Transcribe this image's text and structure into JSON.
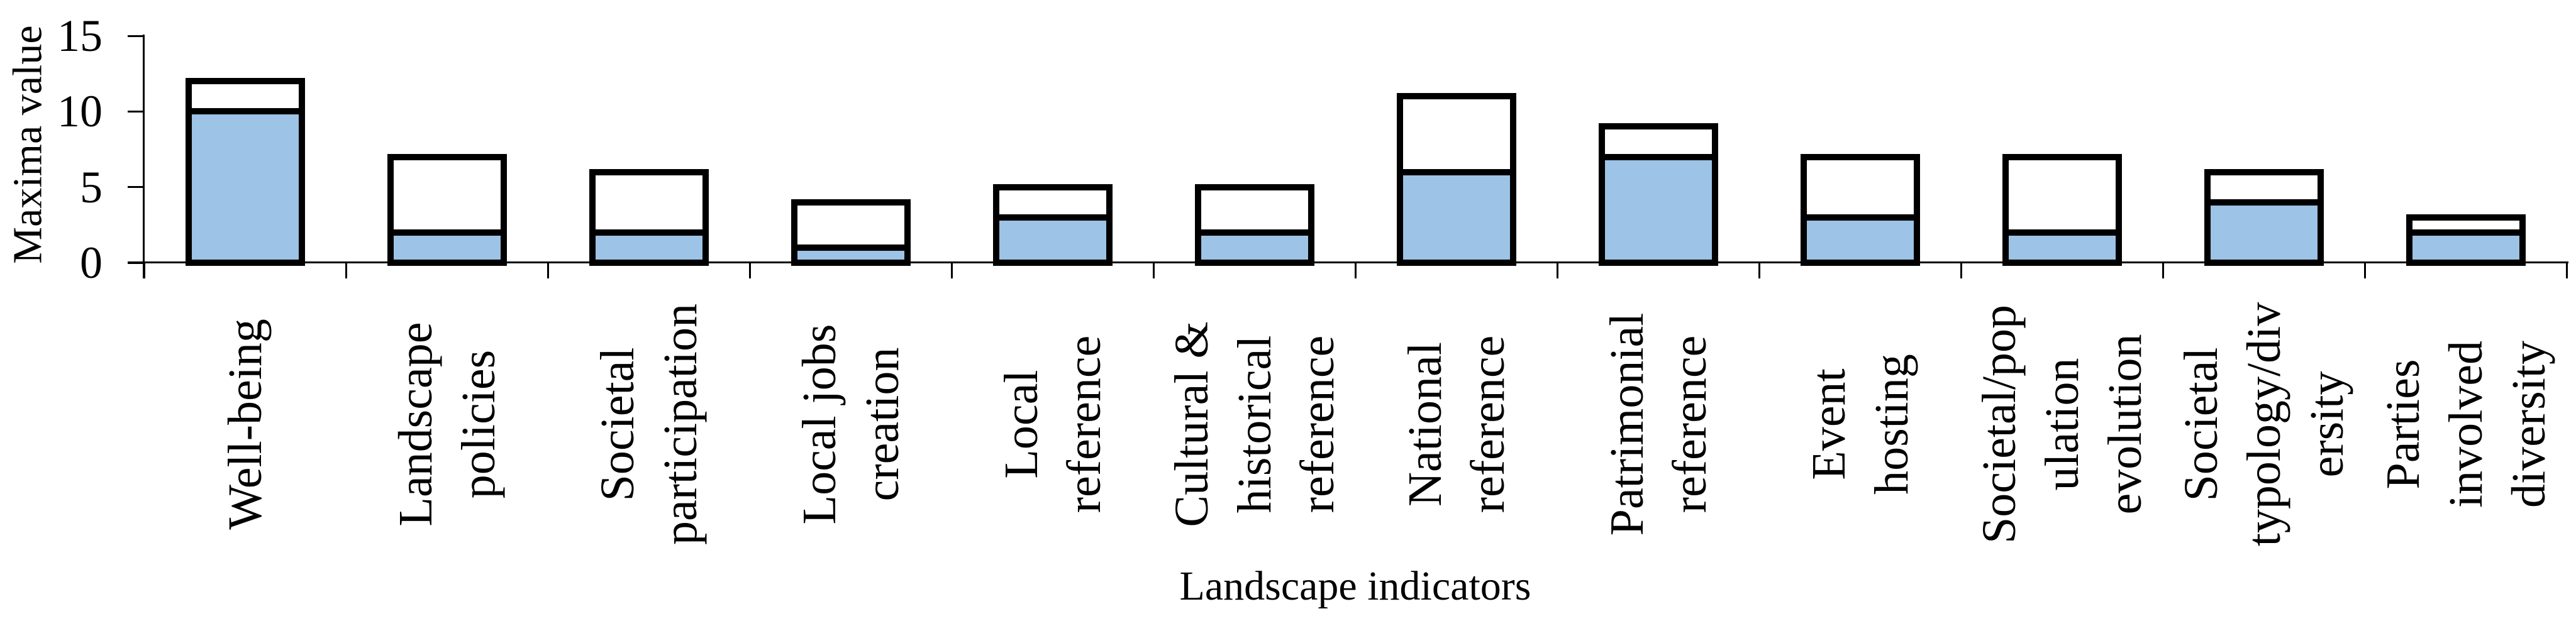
{
  "chart_data": {
    "type": "bar",
    "stacked": true,
    "title": "",
    "xlabel": "Landscape indicators",
    "ylabel": "Maxima value",
    "ylim": [
      0,
      15
    ],
    "yticks": [
      0,
      5,
      10,
      15
    ],
    "grid": false,
    "legend_position": "none",
    "colors": {
      "filled_segment": "#9DC3E6",
      "empty_segment": "#FFFFFF",
      "bar_border": "#000000",
      "axis": "#000000",
      "text": "#000000"
    },
    "categories": [
      {
        "label": "Well-being",
        "lines": [
          "Well-being"
        ],
        "filled_value": 10,
        "empty_top_value": 2,
        "total": 12
      },
      {
        "label": "Landscape policies",
        "lines": [
          "Landscape",
          "policies"
        ],
        "filled_value": 2,
        "empty_top_value": 5,
        "total": 7
      },
      {
        "label": "Societal participation",
        "lines": [
          "Societal",
          "participation"
        ],
        "filled_value": 2,
        "empty_top_value": 4,
        "total": 6
      },
      {
        "label": "Local jobs creation",
        "lines": [
          "Local jobs",
          "creation"
        ],
        "filled_value": 1,
        "empty_top_value": 3,
        "total": 4
      },
      {
        "label": "Local reference",
        "lines": [
          "Local",
          "reference"
        ],
        "filled_value": 3,
        "empty_top_value": 2,
        "total": 5
      },
      {
        "label": "Cultural & historical reference",
        "lines": [
          "Cultural &",
          "historical",
          "reference"
        ],
        "filled_value": 2,
        "empty_top_value": 3,
        "total": 5
      },
      {
        "label": "National reference",
        "lines": [
          "National",
          "reference"
        ],
        "filled_value": 6,
        "empty_top_value": 5,
        "total": 11
      },
      {
        "label": "Patrimonial reference",
        "lines": [
          "Patrimonial",
          "reference"
        ],
        "filled_value": 7,
        "empty_top_value": 2,
        "total": 9
      },
      {
        "label": "Event hosting",
        "lines": [
          "Event",
          "hosting"
        ],
        "filled_value": 3,
        "empty_top_value": 4,
        "total": 7
      },
      {
        "label": "Societal/population evolution",
        "lines": [
          "Societal/pop",
          "ulation",
          "evolution"
        ],
        "filled_value": 2,
        "empty_top_value": 5,
        "total": 7
      },
      {
        "label": "Societal typology/diversity",
        "lines": [
          "Societal",
          "typology/div",
          "ersity"
        ],
        "filled_value": 4,
        "empty_top_value": 2,
        "total": 6
      },
      {
        "label": "Parties involved diversity",
        "lines": [
          "Parties",
          "involved",
          "diversity"
        ],
        "filled_value": 2,
        "empty_top_value": 1,
        "total": 3
      }
    ]
  }
}
